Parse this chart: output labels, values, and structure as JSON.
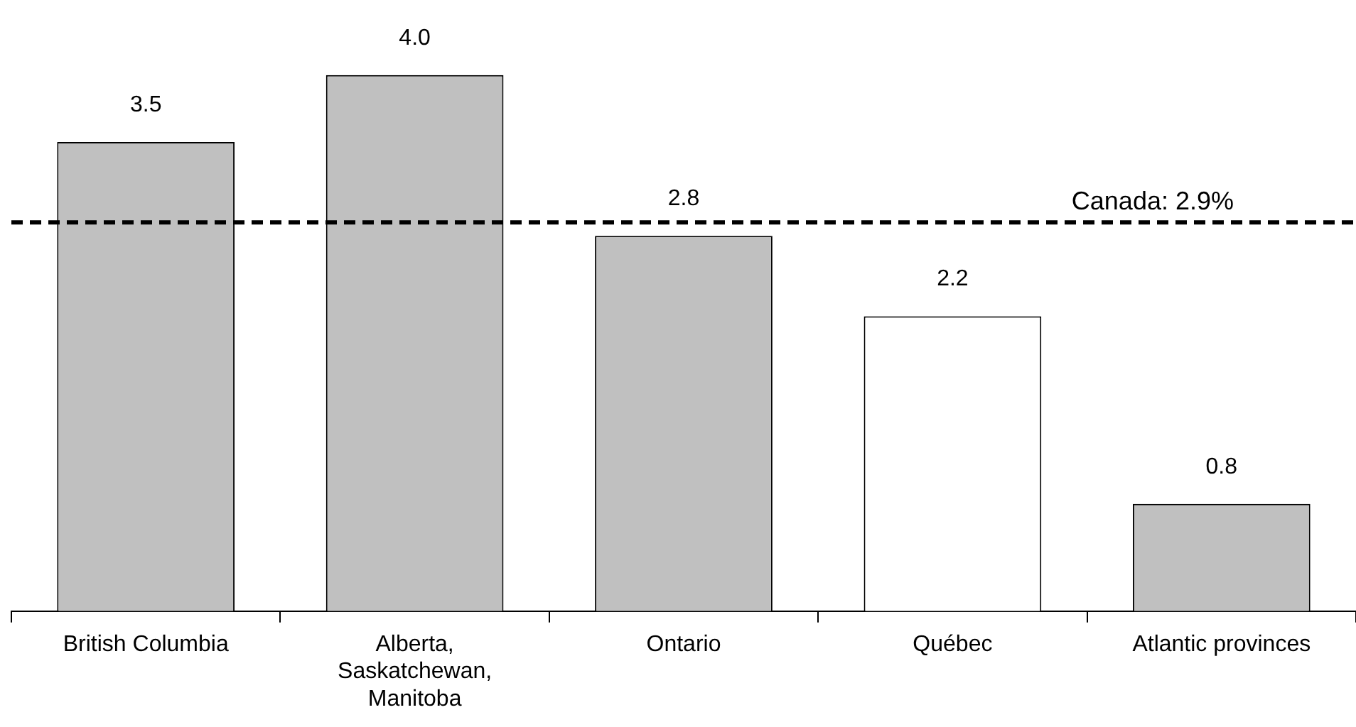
{
  "chart_data": {
    "type": "bar",
    "categories": [
      "British Columbia",
      "Alberta, Saskatchewan, Manitoba",
      "Ontario",
      "Québec",
      "Atlantic provinces"
    ],
    "values": [
      3.5,
      4.0,
      2.8,
      2.2,
      0.8
    ],
    "colors": [
      "#c0c0c0",
      "#c0c0c0",
      "#c0c0c0",
      "#ffffff",
      "#c0c0c0"
    ],
    "value_labels": [
      "3.5",
      "4.0",
      "2.8",
      "2.2",
      "0.8"
    ],
    "grid": false,
    "legend": false,
    "tick_labels": "x",
    "ref_lines": [
      {
        "axis": "y",
        "value": 2.9,
        "label": "Canada: 2.9%",
        "color": "#000000",
        "line_style": "dashed"
      }
    ]
  }
}
